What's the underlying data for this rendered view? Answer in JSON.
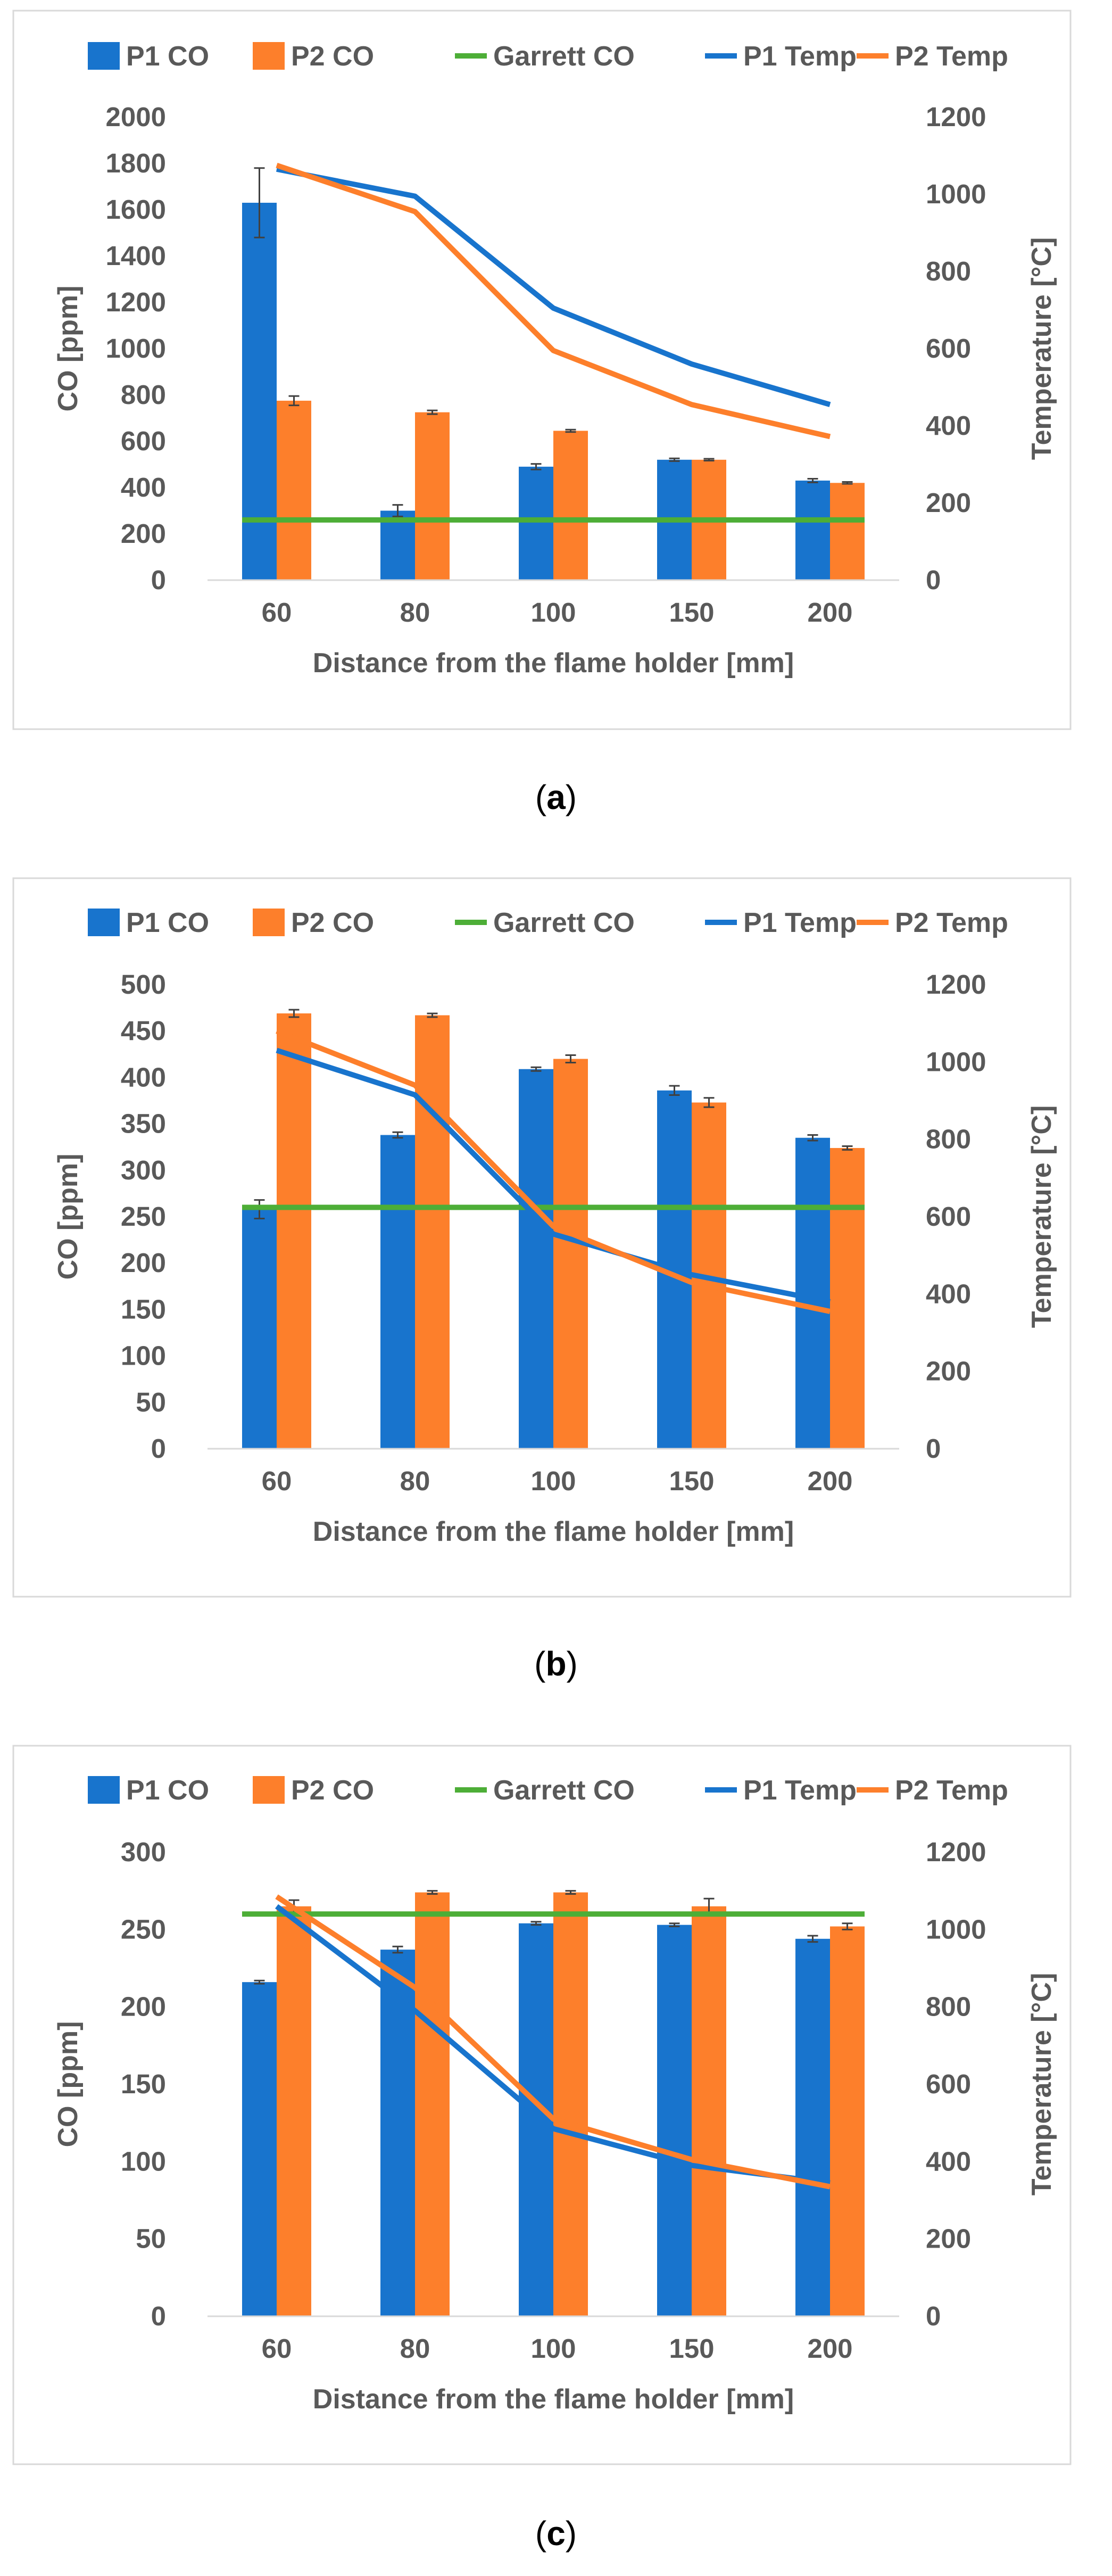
{
  "colors": {
    "p1_co": "#1874cd",
    "p2_co": "#fd7f2b",
    "garrett_co": "#4dae37",
    "p1_temp": "#1874cd",
    "p2_temp": "#fd7f2b",
    "frame": "#d9d9d9",
    "text": "#595959",
    "error_bar": "#404040"
  },
  "chart_data": [
    {
      "type": "bar",
      "caption_letter": "a",
      "categories": [
        "60",
        "80",
        "100",
        "150",
        "200"
      ],
      "series": [
        {
          "name": "P1 CO",
          "kind": "bar",
          "axis": "left",
          "values": [
            1630,
            300,
            490,
            520,
            430
          ],
          "errors": [
            150,
            25,
            12,
            6,
            8
          ]
        },
        {
          "name": "P2 CO",
          "kind": "bar",
          "axis": "left",
          "values": [
            775,
            725,
            645,
            520,
            420
          ],
          "errors": [
            20,
            8,
            5,
            4,
            4
          ]
        },
        {
          "name": "Garrett CO",
          "kind": "line",
          "axis": "left",
          "values": [
            260,
            260,
            260,
            260,
            260
          ]
        },
        {
          "name": "P1 Temp",
          "kind": "line",
          "axis": "right",
          "values": [
            1065,
            995,
            705,
            560,
            455
          ]
        },
        {
          "name": "P2 Temp",
          "kind": "line",
          "axis": "right",
          "values": [
            1075,
            955,
            595,
            455,
            372
          ]
        }
      ],
      "xlabel": "Distance from the flame holder [mm]",
      "ylabel": "CO [ppm]",
      "y2label": "Temperature [°C]",
      "ylim": [
        0,
        2000
      ],
      "y2lim": [
        0,
        1200
      ],
      "yticks": [
        "0",
        "200",
        "400",
        "600",
        "800",
        "1000",
        "1200",
        "1400",
        "1600",
        "1800",
        "2000"
      ],
      "y2ticks": [
        "0",
        "200",
        "400",
        "600",
        "800",
        "1000",
        "1200"
      ],
      "legend": "top"
    },
    {
      "type": "bar",
      "caption_letter": "b",
      "categories": [
        "60",
        "80",
        "100",
        "150",
        "200"
      ],
      "series": [
        {
          "name": "P1 CO",
          "kind": "bar",
          "axis": "left",
          "values": [
            258,
            338,
            409,
            386,
            335
          ],
          "errors": [
            10,
            3,
            2,
            5,
            3
          ]
        },
        {
          "name": "P2 CO",
          "kind": "bar",
          "axis": "left",
          "values": [
            469,
            467,
            420,
            373,
            324
          ],
          "errors": [
            4,
            2,
            4,
            5,
            2
          ]
        },
        {
          "name": "Garrett CO",
          "kind": "line",
          "axis": "left",
          "values": [
            260,
            260,
            260,
            260,
            260
          ]
        },
        {
          "name": "P1 Temp",
          "kind": "line",
          "axis": "right",
          "values": [
            1030,
            915,
            555,
            450,
            380
          ]
        },
        {
          "name": "P2 Temp",
          "kind": "line",
          "axis": "right",
          "values": [
            1080,
            940,
            575,
            430,
            355
          ]
        }
      ],
      "xlabel": "Distance from the flame holder [mm]",
      "ylabel": "CO [ppm]",
      "y2label": "Temperature [°C]",
      "ylim": [
        0,
        500
      ],
      "y2lim": [
        0,
        1200
      ],
      "yticks": [
        "0",
        "50",
        "100",
        "150",
        "200",
        "250",
        "300",
        "350",
        "400",
        "450",
        "500"
      ],
      "y2ticks": [
        "0",
        "200",
        "400",
        "600",
        "800",
        "1000",
        "1200"
      ],
      "legend": "top"
    },
    {
      "type": "bar",
      "caption_letter": "c",
      "categories": [
        "60",
        "80",
        "100",
        "150",
        "200"
      ],
      "series": [
        {
          "name": "P1 CO",
          "kind": "bar",
          "axis": "left",
          "values": [
            216,
            237,
            254,
            253,
            244
          ],
          "errors": [
            1,
            2,
            1,
            1,
            2
          ]
        },
        {
          "name": "P2 CO",
          "kind": "bar",
          "axis": "left",
          "values": [
            265,
            274,
            274,
            265,
            252
          ],
          "errors": [
            4,
            1,
            1,
            5,
            2
          ]
        },
        {
          "name": "Garrett CO",
          "kind": "line",
          "axis": "left",
          "values": [
            260,
            260,
            260,
            260,
            260
          ]
        },
        {
          "name": "P1 Temp",
          "kind": "line",
          "axis": "right",
          "values": [
            1060,
            790,
            485,
            390,
            345
          ]
        },
        {
          "name": "P2 Temp",
          "kind": "line",
          "axis": "right",
          "values": [
            1085,
            850,
            510,
            405,
            335
          ]
        }
      ],
      "xlabel": "Distance from the flame holder [mm]",
      "ylabel": "CO [ppm]",
      "y2label": "Temperature [°C]",
      "ylim": [
        0,
        300
      ],
      "y2lim": [
        0,
        1200
      ],
      "yticks": [
        "0",
        "50",
        "100",
        "150",
        "200",
        "250",
        "300"
      ],
      "y2ticks": [
        "0",
        "200",
        "400",
        "600",
        "800",
        "1000",
        "1200"
      ],
      "legend": "top"
    }
  ]
}
